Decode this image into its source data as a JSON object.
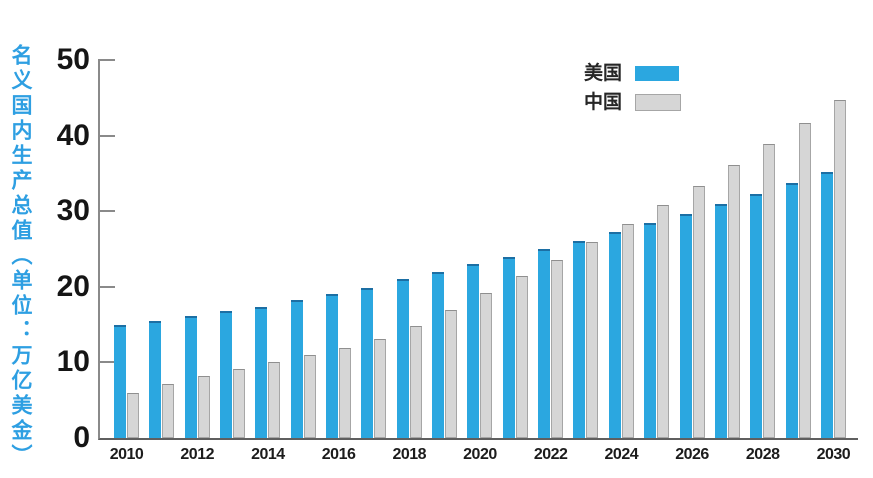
{
  "page": {
    "background": "#ffffff"
  },
  "y_axis_title": "名义国内生产总值（单位：万亿美金）",
  "colors": {
    "us_bar": "#2ba7e0",
    "us_bar_top_edge": "#1c6fa4",
    "cn_bar_fill": "#d6d6d6",
    "cn_bar_border": "#a6a6a6",
    "axis": "#8a8a8a",
    "ytitle_blue": "#2e9fe2",
    "tick_text": "#151515"
  },
  "chart_data": {
    "type": "bar",
    "title": "",
    "xlabel": "",
    "ylabel": "名义国内生产总值（单位：万亿美金）",
    "ylim": [
      0,
      50
    ],
    "yticks": [
      0,
      10,
      20,
      30,
      40,
      50
    ],
    "grid": false,
    "legend_position": "upper center-right",
    "x": [
      2010,
      2011,
      2012,
      2013,
      2014,
      2015,
      2016,
      2017,
      2018,
      2019,
      2020,
      2021,
      2022,
      2023,
      2024,
      2025,
      2026,
      2027,
      2028,
      2029,
      2030
    ],
    "xtick_labels": [
      "2010",
      "2012",
      "2014",
      "2016",
      "2018",
      "2020",
      "2022",
      "2024",
      "2026",
      "2028",
      "2030"
    ],
    "series": [
      {
        "name": "美国",
        "color": "#2ba7e0",
        "swatch_border": "none",
        "values": [
          15.0,
          15.5,
          16.1,
          16.8,
          17.4,
          18.2,
          19.0,
          19.9,
          21.0,
          22.0,
          23.0,
          24.0,
          25.0,
          26.1,
          27.2,
          28.4,
          29.7,
          31.0,
          32.3,
          33.7,
          35.2
        ]
      },
      {
        "name": "中国",
        "color": "#d6d6d6",
        "swatch_border": "#a6a6a6",
        "values": [
          5.9,
          7.2,
          8.2,
          9.1,
          10.0,
          11.0,
          11.9,
          13.1,
          14.8,
          16.9,
          19.2,
          21.4,
          23.5,
          25.9,
          28.3,
          30.8,
          33.3,
          36.1,
          38.9,
          41.7,
          44.7
        ]
      }
    ]
  }
}
